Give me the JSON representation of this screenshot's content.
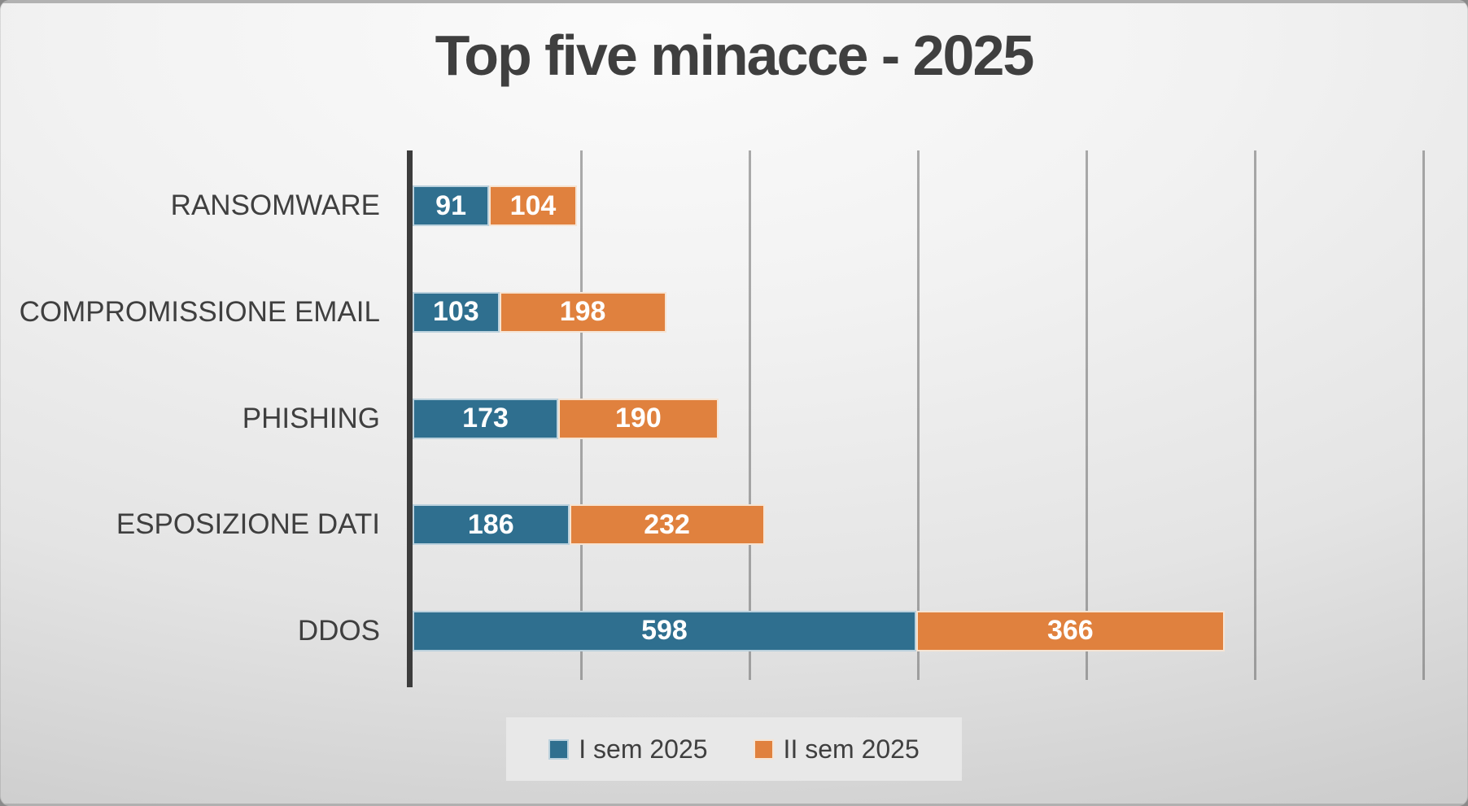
{
  "slide": {
    "title": "Top five minacce - 2025"
  },
  "chart_data": {
    "type": "bar",
    "orientation": "horizontal",
    "stacked": true,
    "title": "Top five minacce - 2025",
    "categories": [
      "RANSOMWARE",
      "COMPROMISSIONE EMAIL",
      "PHISHING",
      "ESPOSIZIONE DATI",
      "DDOS"
    ],
    "series": [
      {
        "name": "I sem 2025",
        "color": "#2F6F8F",
        "border_color": "#BBD1DD",
        "values": [
          91,
          103,
          173,
          186,
          598
        ]
      },
      {
        "name": "II sem 2025",
        "color": "#E0813E",
        "border_color": "#F6E4D3",
        "values": [
          104,
          198,
          190,
          232,
          366
        ]
      }
    ],
    "totals": [
      195,
      301,
      363,
      418,
      964
    ],
    "value_labels_shown": true,
    "xlim": [
      0,
      1200
    ],
    "grid_step": 200,
    "grid": true,
    "tick_labels_shown": false,
    "legend_position": "bottom",
    "colors": {
      "axis": "#3C3C3C",
      "gridline": "#696969",
      "category_label": "#3F3F3F",
      "value_label": "#FFFFFF",
      "title": "#3F3F3F",
      "legend_background": "#E9E9E9"
    }
  }
}
